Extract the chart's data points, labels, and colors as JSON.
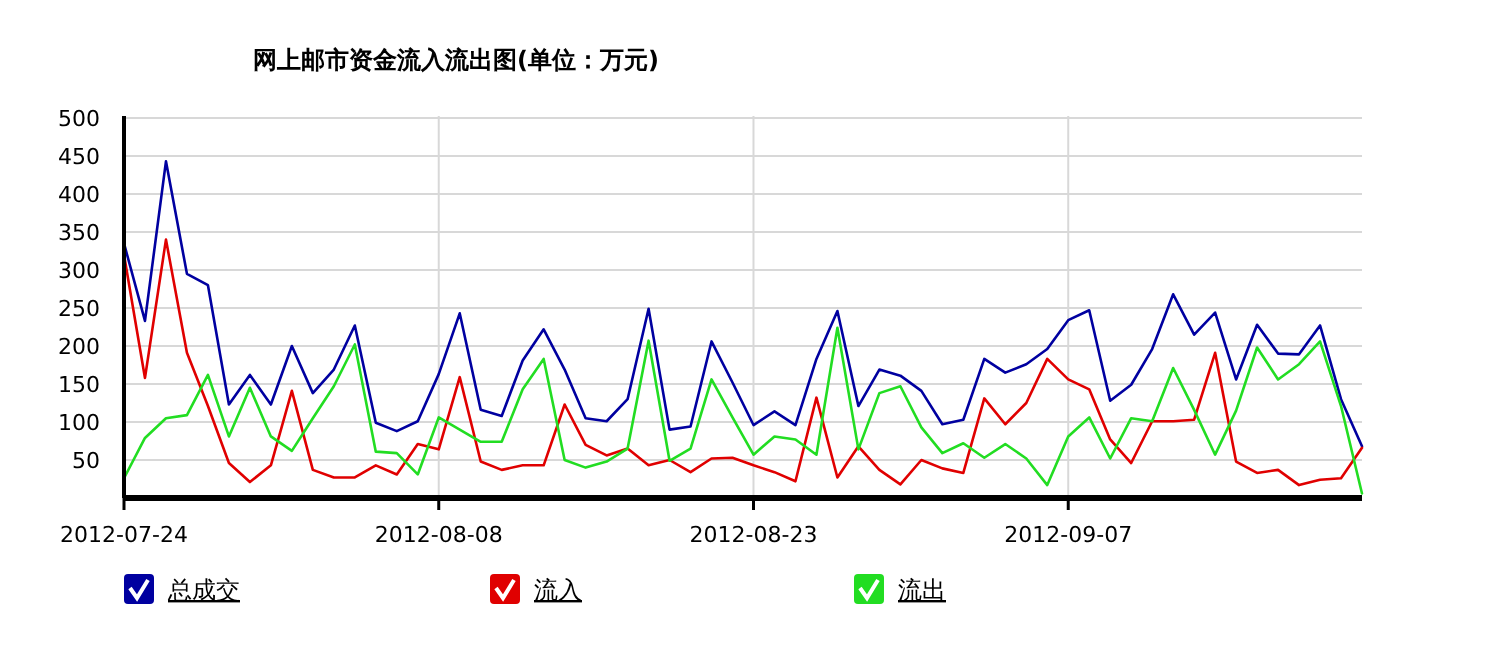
{
  "chart_data": {
    "type": "line",
    "title": "网上邮市资金流入流出图(单位：万元)",
    "x": [
      "2012-07-24",
      "2012-07-25",
      "2012-07-26",
      "2012-07-27",
      "2012-07-28",
      "2012-07-29",
      "2012-07-30",
      "2012-07-31",
      "2012-08-01",
      "2012-08-02",
      "2012-08-03",
      "2012-08-04",
      "2012-08-05",
      "2012-08-06",
      "2012-08-07",
      "2012-08-08",
      "2012-08-09",
      "2012-08-10",
      "2012-08-11",
      "2012-08-12",
      "2012-08-13",
      "2012-08-14",
      "2012-08-15",
      "2012-08-16",
      "2012-08-17",
      "2012-08-18",
      "2012-08-19",
      "2012-08-20",
      "2012-08-21",
      "2012-08-22",
      "2012-08-23",
      "2012-08-24",
      "2012-08-25",
      "2012-08-26",
      "2012-08-27",
      "2012-08-28",
      "2012-08-29",
      "2012-08-30",
      "2012-08-31",
      "2012-09-01",
      "2012-09-02",
      "2012-09-03",
      "2012-09-04",
      "2012-09-05",
      "2012-09-06",
      "2012-09-07",
      "2012-09-08",
      "2012-09-09",
      "2012-09-10",
      "2012-09-11",
      "2012-09-12",
      "2012-09-13",
      "2012-09-14",
      "2012-09-15",
      "2012-09-16",
      "2012-09-17",
      "2012-09-18",
      "2012-09-19",
      "2012-09-20",
      "2012-09-21"
    ],
    "series": [
      {
        "name": "总成交",
        "color": "#0000a0",
        "values": [
          335,
          233,
          443,
          295,
          280,
          123,
          162,
          123,
          200,
          138,
          169,
          227,
          99,
          88,
          101,
          163,
          243,
          116,
          108,
          181,
          222,
          169,
          105,
          101,
          130,
          249,
          90,
          94,
          206,
          152,
          96,
          114,
          96,
          183,
          246,
          121,
          169,
          161,
          141,
          97,
          103,
          183,
          165,
          176,
          196,
          234,
          247,
          128,
          149,
          196,
          268,
          215,
          244,
          156,
          228,
          190,
          189,
          227,
          130,
          68
        ]
      },
      {
        "name": "流入",
        "color": "#e00000",
        "values": [
          320,
          158,
          340,
          191,
          121,
          46,
          21,
          43,
          141,
          37,
          27,
          27,
          43,
          31,
          71,
          64,
          159,
          48,
          37,
          43,
          43,
          123,
          70,
          56,
          65,
          43,
          50,
          34,
          52,
          53,
          43,
          34,
          22,
          132,
          27,
          68,
          37,
          18,
          50,
          39,
          33,
          131,
          97,
          125,
          183,
          156,
          143,
          77,
          46,
          101,
          101,
          103,
          191,
          48,
          33,
          37,
          17,
          24,
          26,
          66
        ]
      },
      {
        "name": "流出",
        "color": "#22dd22",
        "values": [
          26,
          79,
          105,
          109,
          162,
          81,
          145,
          81,
          62,
          105,
          147,
          202,
          61,
          59,
          31,
          106,
          90,
          74,
          74,
          143,
          183,
          50,
          40,
          48,
          65,
          207,
          49,
          65,
          156,
          106,
          57,
          81,
          77,
          57,
          224,
          64,
          138,
          147,
          93,
          59,
          72,
          53,
          71,
          52,
          17,
          81,
          106,
          52,
          105,
          101,
          171,
          116,
          57,
          115,
          198,
          156,
          176,
          206,
          121,
          6
        ]
      }
    ],
    "xlim": [
      "2012-07-24",
      "2012-09-21"
    ],
    "xticks": [
      "2012-07-24",
      "2012-08-08",
      "2012-08-23",
      "2012-09-07"
    ],
    "ylim": [
      0,
      500
    ],
    "yticks": [
      50,
      100,
      150,
      200,
      250,
      300,
      350,
      400,
      450,
      500
    ],
    "grid": true,
    "legend": "bottom",
    "marker": "none",
    "line_style": "solid"
  }
}
